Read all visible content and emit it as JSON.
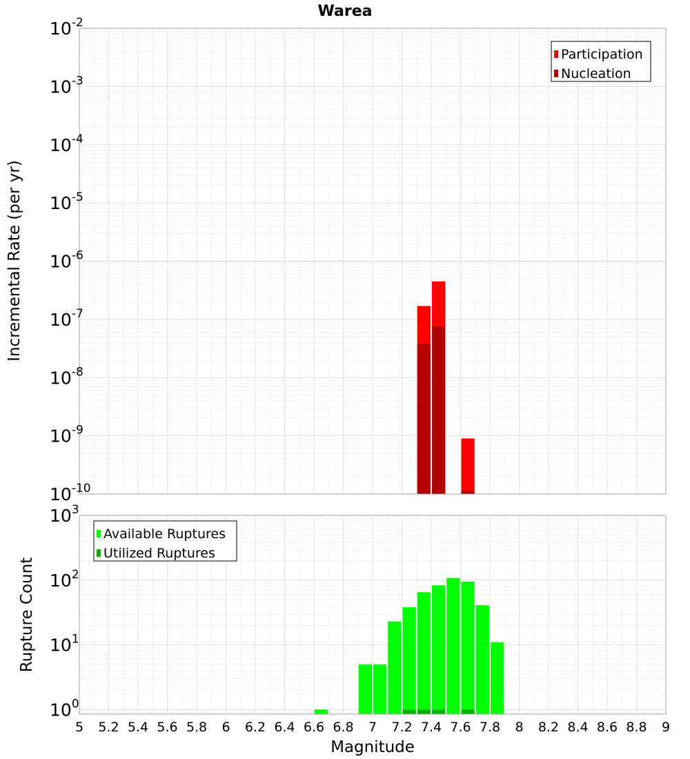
{
  "chart_data": [
    {
      "type": "bar",
      "title": "Warea",
      "xlabel": "",
      "ylabel": "Incremental Rate (per yr)",
      "yscale": "log",
      "ylim": [
        1e-10,
        0.01
      ],
      "xlim": [
        5,
        9
      ],
      "y_tick_labels": [
        {
          "base": "10",
          "exp": "-2"
        },
        {
          "base": "10",
          "exp": "-3"
        },
        {
          "base": "10",
          "exp": "-4"
        },
        {
          "base": "10",
          "exp": "-5"
        },
        {
          "base": "10",
          "exp": "-6"
        },
        {
          "base": "10",
          "exp": "-7"
        },
        {
          "base": "10",
          "exp": "-8"
        },
        {
          "base": "10",
          "exp": "-9"
        },
        {
          "base": "10",
          "exp": "-10"
        }
      ],
      "grid": true,
      "legend_position": "top-right",
      "series": [
        {
          "name": "Participation",
          "color": "#ff0000",
          "x": [
            7.35,
            7.45,
            7.65
          ],
          "values": [
            1.7e-07,
            4.5e-07,
            9e-10
          ]
        },
        {
          "name": "Nucleation",
          "color": "#b30000",
          "x": [
            7.35,
            7.45,
            7.65
          ],
          "values": [
            3.8e-08,
            7.5e-08,
            1.15e-10
          ]
        }
      ]
    },
    {
      "type": "bar",
      "title": "",
      "xlabel": "Magnitude",
      "ylabel": "Rupture Count",
      "yscale": "log",
      "ylim": [
        0.85,
        1000
      ],
      "xlim": [
        5,
        9
      ],
      "x_ticks": [
        "5",
        "5.2",
        "5.4",
        "5.6",
        "5.8",
        "6",
        "6.2",
        "6.4",
        "6.6",
        "6.8",
        "7",
        "7.2",
        "7.4",
        "7.6",
        "7.8",
        "8",
        "8.2",
        "8.4",
        "8.6",
        "8.8",
        "9"
      ],
      "y_tick_labels": [
        {
          "base": "10",
          "exp": "3"
        },
        {
          "base": "10",
          "exp": "2"
        },
        {
          "base": "10",
          "exp": "1"
        },
        {
          "base": "10",
          "exp": "0"
        }
      ],
      "grid": true,
      "legend_position": "top-left",
      "series": [
        {
          "name": "Available Ruptures",
          "color": "#00ff00",
          "x": [
            6.65,
            6.95,
            7.05,
            7.15,
            7.25,
            7.35,
            7.45,
            7.55,
            7.65,
            7.75,
            7.85
          ],
          "values": [
            1,
            5,
            5,
            23,
            38,
            65,
            83,
            108,
            95,
            41,
            11
          ]
        },
        {
          "name": "Utilized Ruptures",
          "color": "#00b300",
          "x": [
            7.25,
            7.35,
            7.45,
            7.65
          ],
          "values": [
            1,
            1,
            1,
            1
          ]
        }
      ]
    }
  ]
}
